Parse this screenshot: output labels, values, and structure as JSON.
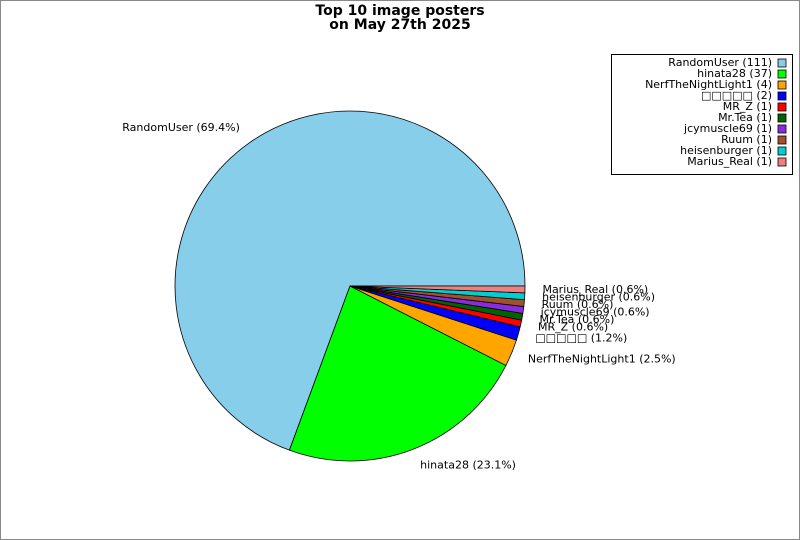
{
  "chart_data": {
    "type": "pie",
    "title": [
      "Top 10 image posters",
      "on May 27th 2025"
    ],
    "values": [
      111,
      37,
      4,
      2,
      1,
      1,
      1,
      1,
      1,
      1
    ],
    "slice_labels": [
      "RandomUser (69.4%)",
      "hinata28 (23.1%)",
      "NerfTheNightLight1 (2.5%)",
      "□□□□□ (1.2%)",
      "MR_Z (0.6%)",
      "Mr.Tea (0.6%)",
      "jcymuscle69 (0.6%)",
      "Ruum (0.6%)",
      "heisenburger (0.6%)",
      "Marius_Real (0.6%)"
    ],
    "legend_labels": [
      "RandomUser (111)",
      "hinata28 (37)",
      "NerfTheNightLight1 (4)",
      "□□□□□ (2)",
      "MR_Z (1)",
      "Mr.Tea (1)",
      "jcymuscle69 (1)",
      "Ruum (1)",
      "heisenburger (1)",
      "Marius_Real (1)"
    ],
    "colors": [
      "#87ceeb",
      "#00ff00",
      "#ffa500",
      "#0000ff",
      "#ff0000",
      "#006400",
      "#8a2be2",
      "#a0522d",
      "#00ced1",
      "#f08080"
    ],
    "legend_position": "upper right"
  }
}
